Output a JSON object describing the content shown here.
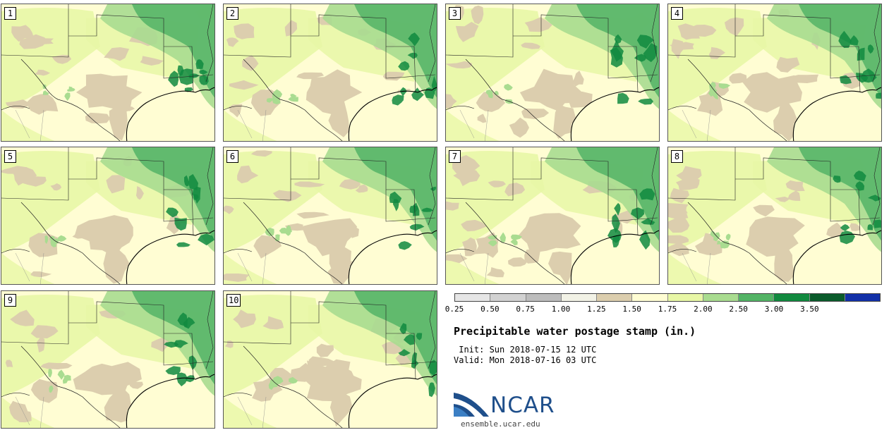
{
  "title": "Precipitable water postage stamp (in.)",
  "init": " Init: Sun 2018-07-15 12 UTC",
  "valid": "Valid: Mon 2018-07-16 03 UTC",
  "site": "ensemble.ucar.edu",
  "logo_text": "NCAR",
  "members": [
    "1",
    "2",
    "3",
    "4",
    "5",
    "6",
    "7",
    "8",
    "9",
    "10"
  ],
  "colorbar": {
    "ticks": [
      "0.25",
      "0.50",
      "0.75",
      "1.00",
      "1.25",
      "1.50",
      "1.75",
      "2.00",
      "2.50",
      "3.00",
      "3.50"
    ],
    "colors": [
      "#e6e6e6",
      "#d2d2d2",
      "#bdbdbd",
      "#f2f2e6",
      "#dcceae",
      "#fffdd3",
      "#e8f7a6",
      "#a9dc90",
      "#53b466",
      "#118a3f",
      "#0a5b2b",
      "#1230a8"
    ]
  },
  "colors": {
    "background_map": "#fffdd3",
    "dry": "#dcceae",
    "moist": "#e8f7a6",
    "wet": "#a9dc90",
    "very_wet": "#53b466",
    "outline": "#222222",
    "logo_blue": "#1f4f8b"
  }
}
